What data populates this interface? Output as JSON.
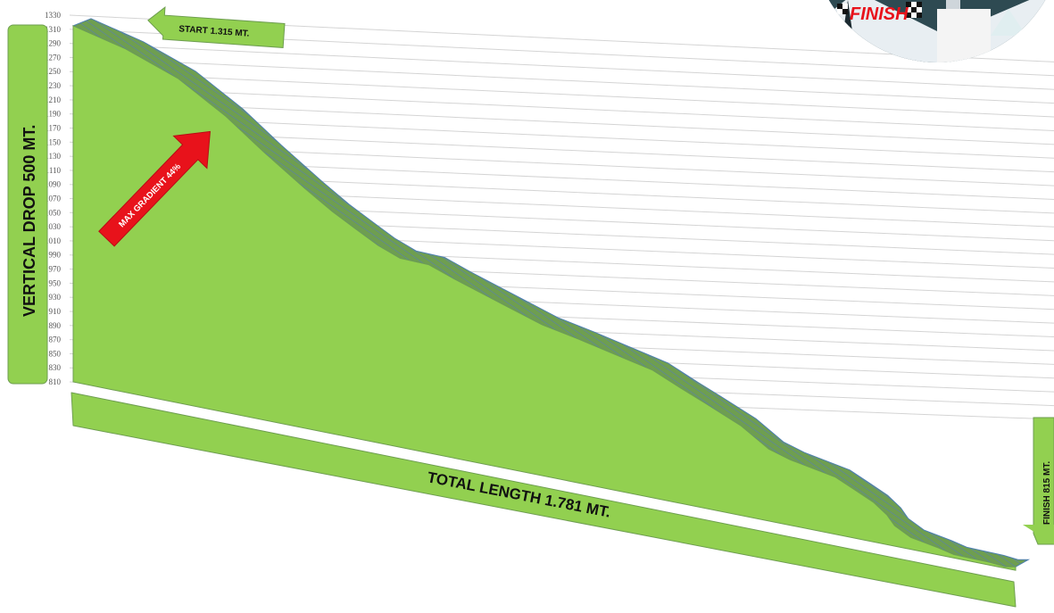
{
  "chart_data": {
    "type": "area",
    "y_ticks": [
      1330,
      1310,
      1290,
      1270,
      1250,
      1230,
      1210,
      1190,
      1170,
      1150,
      1130,
      1110,
      1090,
      1070,
      1050,
      1030,
      1010,
      990,
      970,
      950,
      930,
      910,
      890,
      870,
      850,
      830,
      810
    ],
    "ylim": [
      810,
      1330
    ],
    "x_unit": "mt",
    "profile": {
      "x": [
        0,
        55,
        110,
        160,
        200,
        243,
        272,
        295,
        320,
        343,
        373,
        400,
        455,
        492,
        530,
        584,
        608,
        640,
        665,
        701,
        730,
        752,
        800,
        821,
        840,
        854,
        862,
        879,
        908,
        924,
        963,
        978,
        989
      ],
      "y": [
        1315,
        1297,
        1270,
        1230,
        1190,
        1150,
        1125,
        1108,
        1090,
        1078,
        1077,
        1064,
        1040,
        1024,
        1014,
        998,
        991,
        972,
        958,
        937,
        912,
        903,
        891,
        878,
        866,
        852,
        839,
        827,
        820,
        815,
        814,
        812,
        815
      ]
    },
    "grid": true,
    "legend": "none"
  },
  "annotations": {
    "start_label": "START  1.315 MT.",
    "finish_label": "FINISH  815  MT.",
    "vertical_drop_label": "VERTICAL DROP 500 MT.",
    "total_length_label": "TOTAL LENGTH 1.781 MT.",
    "max_gradient_label": "MAX GRADIENT 44%",
    "finish_logo_text": "FINISH"
  },
  "colors": {
    "fill": "#92d050",
    "ribbon": "#6e9e50",
    "ribbon_stripe": "#5a7fb0",
    "banner": "#92d050",
    "arrow_red": "#e8121b",
    "grid": "#d4d4d4"
  }
}
